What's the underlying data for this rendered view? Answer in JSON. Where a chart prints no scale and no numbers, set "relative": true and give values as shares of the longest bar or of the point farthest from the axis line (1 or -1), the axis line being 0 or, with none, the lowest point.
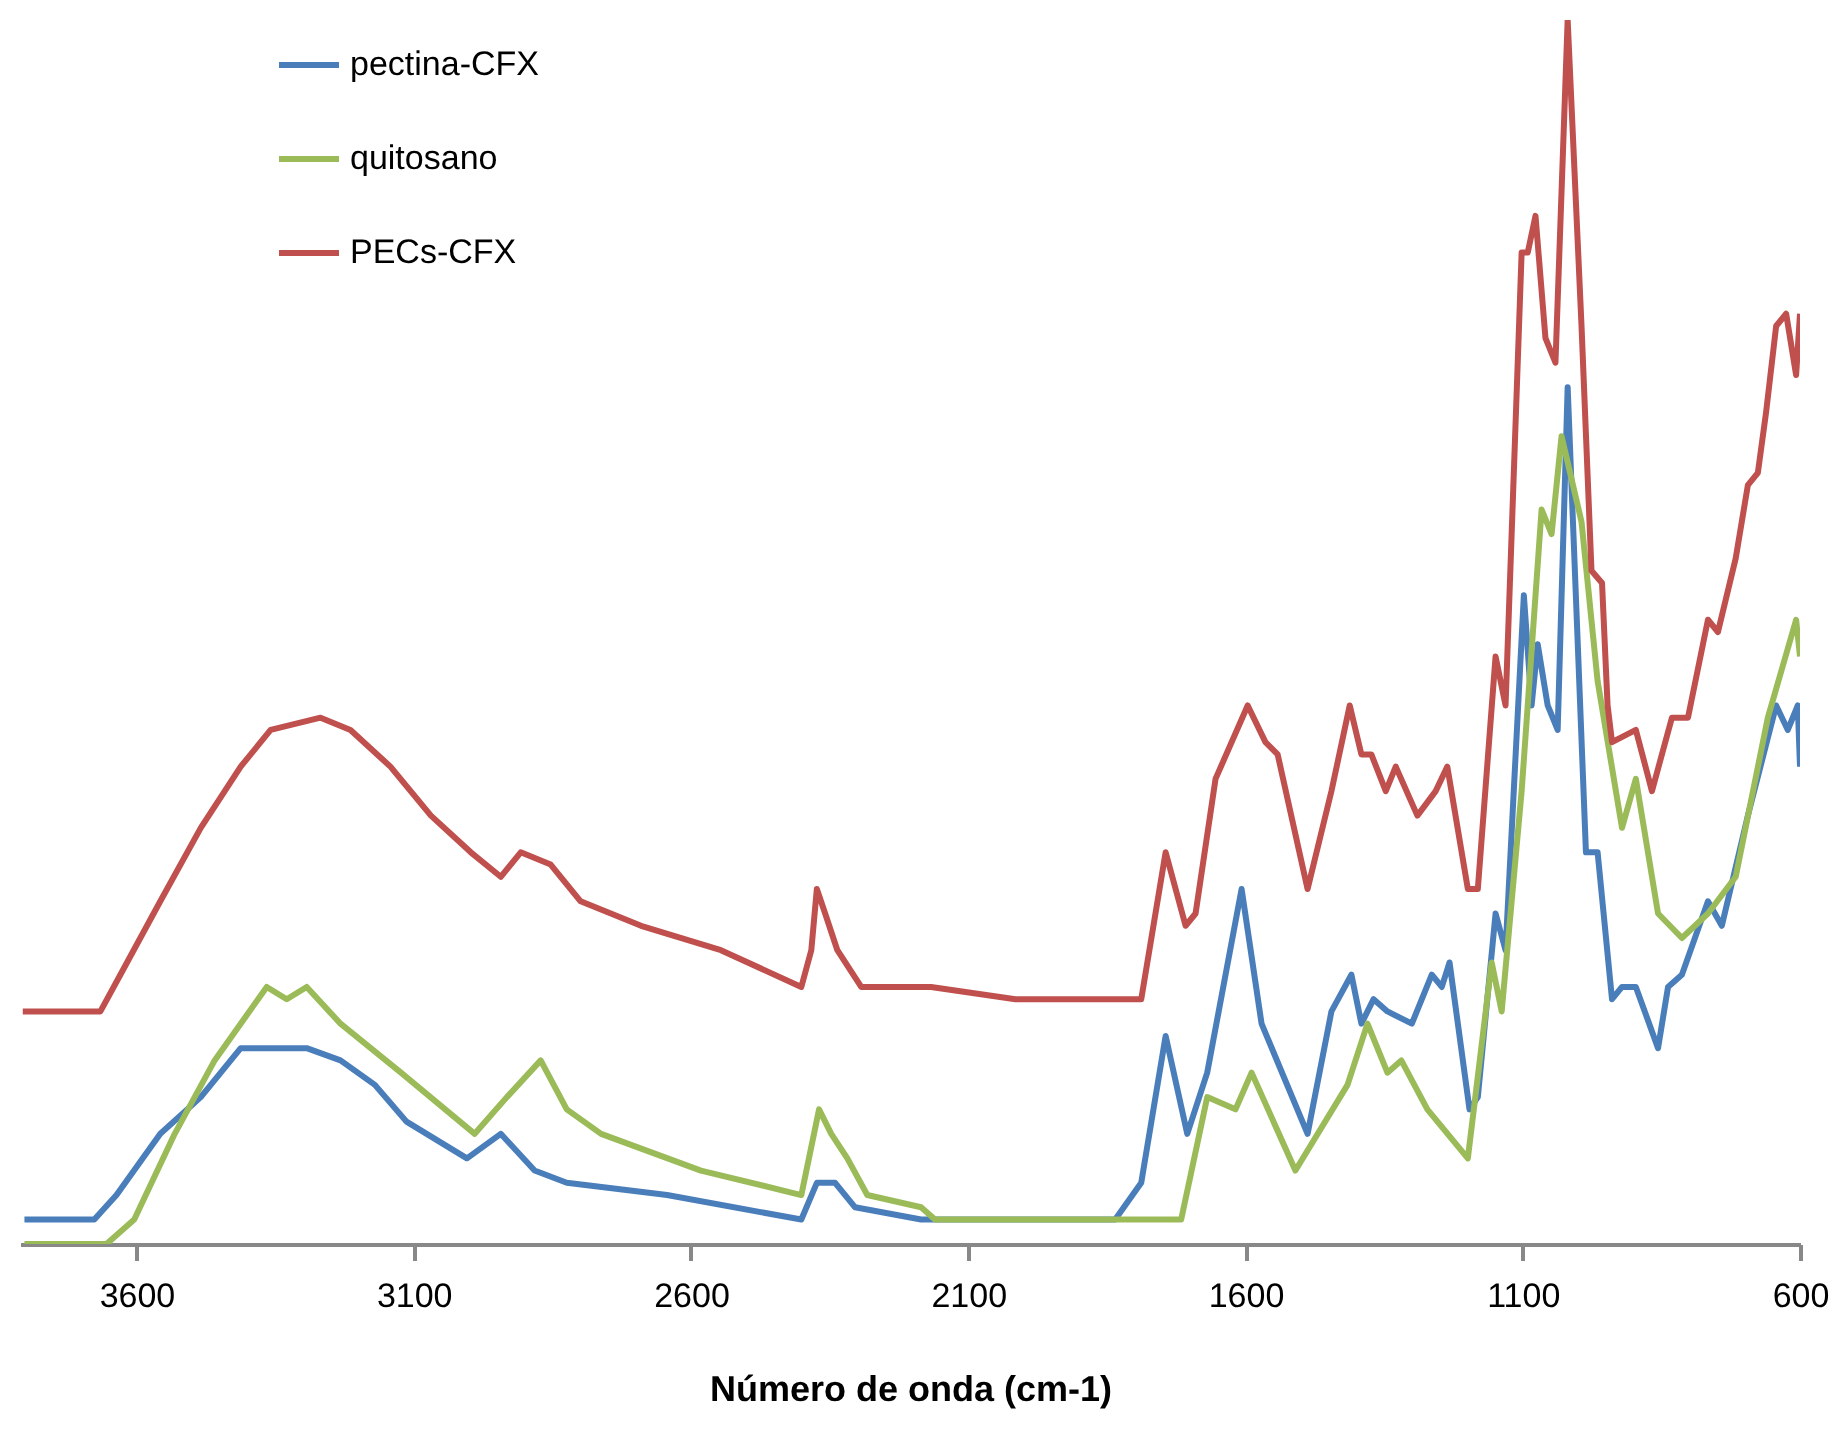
{
  "chart_data": {
    "type": "line",
    "xlabel": "Número de onda (cm-1)",
    "relative": true,
    "xlim": [
      3810,
      600
    ],
    "xticks": [
      3600,
      3100,
      2600,
      2100,
      1600,
      1100,
      600
    ],
    "grid": false,
    "legend": "top left",
    "marker": "none",
    "line_style": "solid",
    "series": [
      {
        "name": "pectina-CFX",
        "color": "#4a7ebb",
        "x": [
          3802,
          3676,
          3636,
          3557,
          3484,
          3412,
          3351,
          3293,
          3232,
          3170,
          3113,
          3004,
          2943,
          2882,
          2824,
          2643,
          2401,
          2373,
          2340,
          2304,
          2185,
          2015,
          1835,
          1788,
          1744,
          1705,
          1669,
          1607,
          1571,
          1488,
          1445,
          1409,
          1391,
          1369,
          1344,
          1300,
          1264,
          1246,
          1232,
          1196,
          1181,
          1149,
          1131,
          1098,
          1084,
          1073,
          1055,
          1037,
          1019,
          986,
          965,
          939,
          921,
          896,
          856,
          838,
          813,
          766,
          741,
          694,
          643,
          622,
          604,
          600
        ],
        "values": [
          0.02,
          0.02,
          0.04,
          0.09,
          0.12,
          0.16,
          0.16,
          0.16,
          0.15,
          0.13,
          0.1,
          0.07,
          0.09,
          0.06,
          0.05,
          0.04,
          0.02,
          0.05,
          0.05,
          0.03,
          0.02,
          0.02,
          0.02,
          0.05,
          0.17,
          0.09,
          0.14,
          0.29,
          0.18,
          0.09,
          0.19,
          0.22,
          0.18,
          0.2,
          0.19,
          0.18,
          0.22,
          0.21,
          0.23,
          0.11,
          0.12,
          0.27,
          0.24,
          0.53,
          0.44,
          0.49,
          0.44,
          0.42,
          0.7,
          0.32,
          0.32,
          0.2,
          0.21,
          0.21,
          0.16,
          0.21,
          0.22,
          0.28,
          0.26,
          0.35,
          0.44,
          0.42,
          0.44,
          0.39
        ]
      },
      {
        "name": "quitosano",
        "color": "#9bbb59",
        "x": [
          3802,
          3654,
          3604,
          3531,
          3459,
          3365,
          3329,
          3293,
          3232,
          3123,
          2990,
          2932,
          2871,
          2824,
          2762,
          2582,
          2401,
          2369,
          2347,
          2318,
          2282,
          2185,
          2160,
          1896,
          1716,
          1669,
          1618,
          1589,
          1510,
          1416,
          1380,
          1344,
          1319,
          1272,
          1199,
          1156,
          1138,
          1102,
          1066,
          1048,
          1030,
          994,
          965,
          921,
          896,
          856,
          813,
          766,
          716,
          658,
          607,
          600
        ],
        "values": [
          0,
          0,
          0.02,
          0.09,
          0.15,
          0.21,
          0.2,
          0.21,
          0.18,
          0.14,
          0.09,
          0.12,
          0.15,
          0.11,
          0.09,
          0.06,
          0.04,
          0.11,
          0.09,
          0.07,
          0.04,
          0.03,
          0.02,
          0.02,
          0.02,
          0.12,
          0.11,
          0.14,
          0.06,
          0.13,
          0.18,
          0.14,
          0.15,
          0.11,
          0.07,
          0.23,
          0.19,
          0.37,
          0.6,
          0.58,
          0.66,
          0.59,
          0.46,
          0.34,
          0.38,
          0.27,
          0.25,
          0.27,
          0.3,
          0.43,
          0.51,
          0.48
        ]
      },
      {
        "name": "PECs-CFX",
        "color": "#c0504d",
        "x": [
          3805,
          3665,
          3629,
          3557,
          3484,
          3412,
          3358,
          3268,
          3214,
          3142,
          3069,
          2997,
          2943,
          2907,
          2853,
          2799,
          2690,
          2546,
          2401,
          2383,
          2373,
          2358,
          2336,
          2293,
          2167,
          2015,
          1788,
          1744,
          1708,
          1690,
          1654,
          1596,
          1564,
          1542,
          1488,
          1445,
          1412,
          1391,
          1373,
          1347,
          1329,
          1290,
          1257,
          1236,
          1199,
          1181,
          1149,
          1131,
          1102,
          1091,
          1077,
          1059,
          1041,
          1019,
          994,
          976,
          957,
          947,
          939,
          896,
          867,
          831,
          802,
          766,
          748,
          716,
          694,
          676,
          661,
          643,
          625,
          607,
          600
        ],
        "values": [
          0.19,
          0.19,
          0.22,
          0.28,
          0.34,
          0.39,
          0.42,
          0.43,
          0.42,
          0.39,
          0.35,
          0.32,
          0.3,
          0.32,
          0.31,
          0.28,
          0.26,
          0.24,
          0.21,
          0.24,
          0.29,
          0.27,
          0.24,
          0.21,
          0.21,
          0.2,
          0.2,
          0.32,
          0.26,
          0.27,
          0.38,
          0.44,
          0.41,
          0.4,
          0.29,
          0.37,
          0.44,
          0.4,
          0.4,
          0.37,
          0.39,
          0.35,
          0.37,
          0.39,
          0.29,
          0.29,
          0.48,
          0.44,
          0.81,
          0.81,
          0.84,
          0.74,
          0.72,
          1,
          0.75,
          0.55,
          0.54,
          0.44,
          0.41,
          0.42,
          0.37,
          0.43,
          0.43,
          0.51,
          0.5,
          0.56,
          0.62,
          0.63,
          0.68,
          0.75,
          0.76,
          0.71,
          0.76
        ]
      }
    ]
  }
}
